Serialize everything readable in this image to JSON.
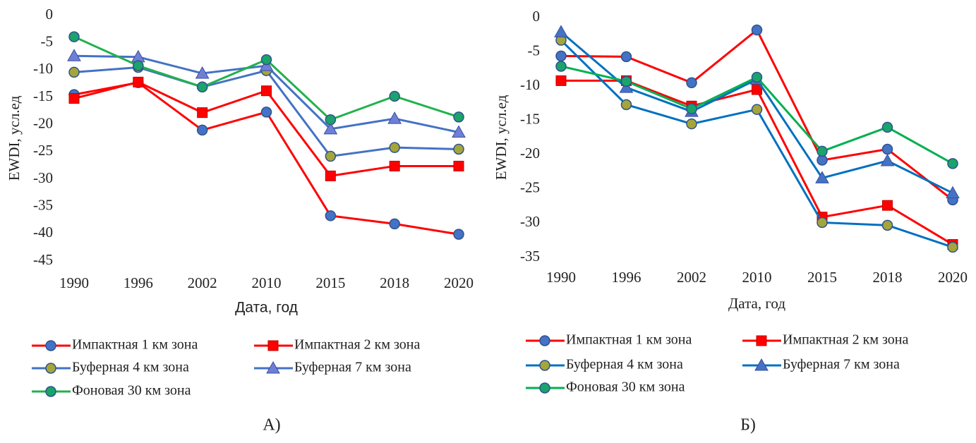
{
  "chart_data": [
    {
      "type": "line",
      "caption": "А)",
      "xlabel": "Дата, год",
      "ylabel": "EWDI, усл.ед",
      "categories": [
        "1990",
        "1996",
        "2002",
        "2010",
        "2015",
        "2018",
        "2020"
      ],
      "ylim": [
        -45,
        0
      ],
      "yticks": [
        0,
        -5,
        -10,
        -15,
        -20,
        -25,
        -30,
        -35,
        -40,
        -45
      ],
      "grid": false,
      "legend": "bottom",
      "series": [
        {
          "name": "Импактная 1 км зона",
          "color": "#ff0000",
          "marker": "circle",
          "marker_color": "#4472c4",
          "values": [
            -14.5,
            -12.3,
            -21,
            -17.7,
            -36.7,
            -38.2,
            -40.1
          ]
        },
        {
          "name": "Импактная 2 км зона",
          "color": "#ff0000",
          "marker": "square",
          "marker_color": "#ff0000",
          "values": [
            -15.2,
            -12.2,
            -17.8,
            -13.8,
            -29.4,
            -27.6,
            -27.6
          ]
        },
        {
          "name": "Буферная 4 км зона",
          "color": "#4472c4",
          "marker": "circle",
          "marker_color": "#a5a53a",
          "values": [
            -10.4,
            -9.5,
            -13.1,
            -10.1,
            -25.8,
            -24.2,
            -24.5
          ]
        },
        {
          "name": "Буферная 7 км зона",
          "color": "#4472c4",
          "marker": "triangle",
          "marker_color": "#6f7fd6",
          "values": [
            -7.4,
            -7.6,
            -10.6,
            -9.2,
            -20.8,
            -18.9,
            -21.4
          ]
        },
        {
          "name": "Фоновая 30 км зона",
          "color": "#22b14c",
          "marker": "circle",
          "marker_color": "#1aa36a",
          "values": [
            -3.9,
            -9.2,
            -13.1,
            -8.1,
            -19.1,
            -14.8,
            -18.6
          ]
        }
      ]
    },
    {
      "type": "line",
      "caption": "Б)",
      "xlabel": "Дата, год",
      "ylabel": "EWDI, усл.ед",
      "categories": [
        "1990",
        "1996",
        "2002",
        "2010",
        "2015",
        "2018",
        "2020"
      ],
      "ylim": [
        -35,
        0
      ],
      "yticks": [
        0,
        -5,
        -10,
        -15,
        -20,
        -25,
        -30,
        -35
      ],
      "grid": false,
      "legend": "bottom",
      "series": [
        {
          "name": "Импактная 1 км зона",
          "color": "#ff0000",
          "marker": "circle",
          "marker_color": "#4472c4",
          "values": [
            -5.6,
            -5.7,
            -9.5,
            -1.8,
            -20.8,
            -19.2,
            -26.6
          ]
        },
        {
          "name": "Импактная 2 км зона",
          "color": "#ff0000",
          "marker": "square",
          "marker_color": "#ff0000",
          "values": [
            -9.2,
            -9.2,
            -12.9,
            -10.5,
            -29.1,
            -27.4,
            -33.1
          ]
        },
        {
          "name": "Буферная 4 км зона",
          "color": "#0070c0",
          "marker": "circle",
          "marker_color": "#a5a53a",
          "values": [
            -3.3,
            -12.7,
            -15.5,
            -13.4,
            -29.9,
            -30.3,
            -33.5
          ]
        },
        {
          "name": "Буферная 7 км зона",
          "color": "#0070c0",
          "marker": "triangle",
          "marker_color": "#4472c4",
          "values": [
            -2.1,
            -10.2,
            -13.7,
            -9.0,
            -23.4,
            -20.9,
            -25.6
          ]
        },
        {
          "name": "Фоновая 30 км зона",
          "color": "#00b050",
          "marker": "circle",
          "marker_color": "#1aa36a",
          "values": [
            -7.1,
            -9.3,
            -13.3,
            -8.7,
            -19.5,
            -16.0,
            -21.3
          ]
        }
      ]
    }
  ]
}
